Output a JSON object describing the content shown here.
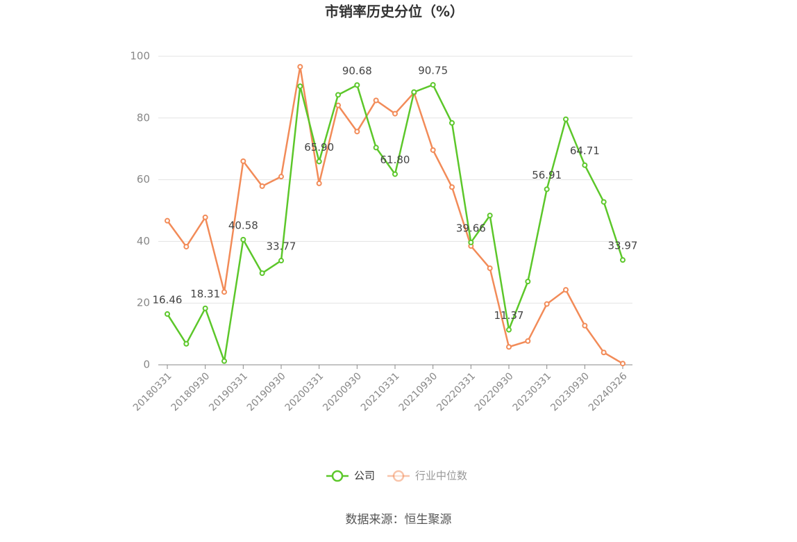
{
  "chart_data": {
    "type": "line",
    "title": "市销率历史分位（%）",
    "categories": [
      "20180331",
      null,
      "20180930",
      null,
      "20190331",
      null,
      "20190930",
      null,
      "20200331",
      null,
      "20200930",
      null,
      "20210331",
      null,
      "20210930",
      null,
      "20220331",
      null,
      "20220930",
      null,
      "20230331",
      null,
      "20230930",
      null,
      "20240326"
    ],
    "series": [
      {
        "name": "公司",
        "color": "#5cc72a",
        "values": [
          16.46,
          6.8,
          18.31,
          1.2,
          40.58,
          29.7,
          33.77,
          90.3,
          65.9,
          87.5,
          90.68,
          70.4,
          61.8,
          88.4,
          90.75,
          78.4,
          39.66,
          48.4,
          11.37,
          27.0,
          56.91,
          79.6,
          64.71,
          52.8,
          33.97
        ],
        "value_labels": [
          "16.46",
          null,
          "18.31",
          null,
          "40.58",
          null,
          "33.77",
          null,
          "65.90",
          null,
          "90.68",
          null,
          "61.80",
          null,
          "90.75",
          null,
          "39.66",
          null,
          "11.37",
          null,
          "56.91",
          null,
          "64.71",
          null,
          "33.97"
        ]
      },
      {
        "name": "行业中位数",
        "color": "#f28b58",
        "values": [
          46.7,
          38.3,
          47.8,
          23.6,
          66.0,
          57.9,
          61.0,
          96.6,
          58.8,
          84.1,
          75.6,
          85.7,
          81.4,
          88.2,
          69.6,
          57.6,
          38.5,
          31.3,
          5.8,
          7.7,
          19.7,
          24.3,
          12.7,
          4.0,
          0.4
        ]
      }
    ],
    "ylim": [
      0,
      100
    ],
    "yticks": [
      0,
      20,
      40,
      60,
      80,
      100
    ],
    "grid": true,
    "source": "数据来源：恒生聚源"
  }
}
